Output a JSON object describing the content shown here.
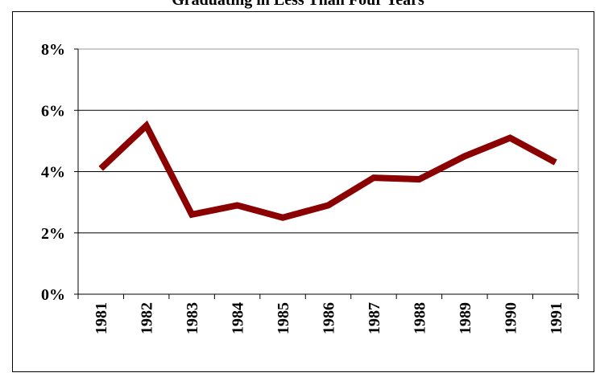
{
  "chart_data": {
    "type": "line",
    "title": "Graduating in Less Than Four Years",
    "categories": [
      "1981",
      "1982",
      "1983",
      "1984",
      "1985",
      "1986",
      "1987",
      "1988",
      "1989",
      "1990",
      "1991"
    ],
    "series": [
      {
        "color": "#8b0000",
        "values": [
          4.1,
          5.5,
          2.6,
          2.9,
          2.5,
          2.9,
          3.8,
          3.75,
          4.5,
          5.1,
          4.3
        ]
      }
    ],
    "ylim": [
      0,
      8
    ],
    "yticks": [
      {
        "value": 0,
        "label": "0%"
      },
      {
        "value": 2,
        "label": "2%"
      },
      {
        "value": 4,
        "label": "4%"
      },
      {
        "value": 6,
        "label": "6%"
      },
      {
        "value": 8,
        "label": "8%"
      }
    ],
    "grid": true
  }
}
